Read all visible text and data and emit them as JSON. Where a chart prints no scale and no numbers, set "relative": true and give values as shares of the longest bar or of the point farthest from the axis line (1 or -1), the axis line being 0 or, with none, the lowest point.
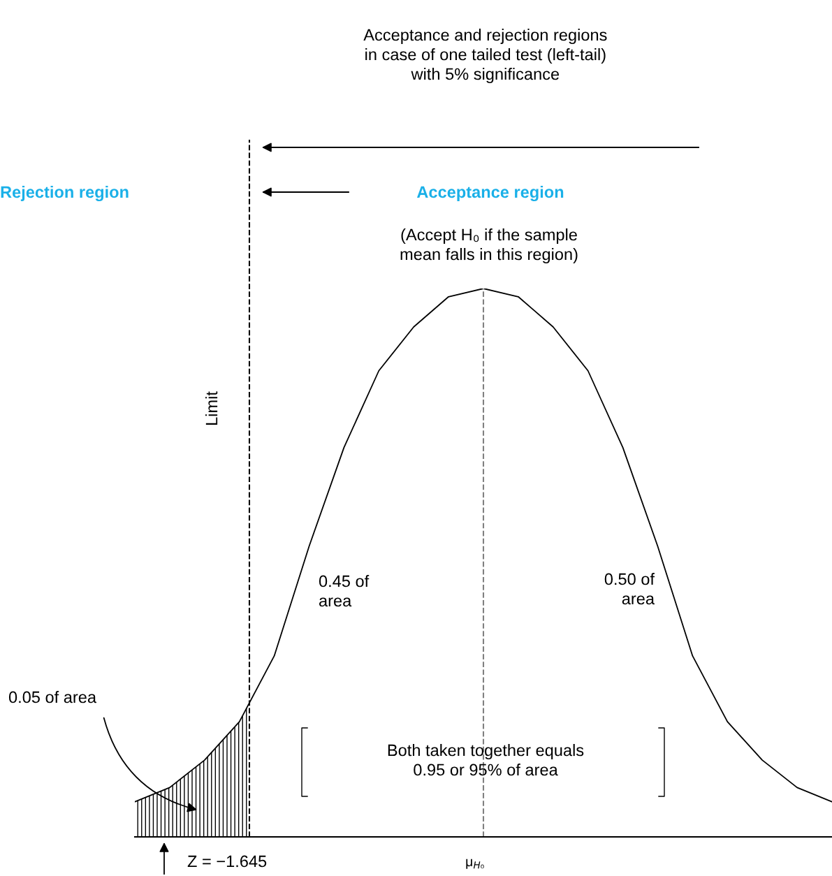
{
  "chart_data": {
    "type": "line",
    "relative": true,
    "title": "Acceptance and rejection regions\nin case of one tailed test (left-tail)\nwith 5% significance",
    "categories": [
      null,
      null,
      null,
      null,
      null,
      null,
      null,
      null,
      null,
      null,
      null,
      null,
      null,
      null,
      null,
      null,
      null,
      null,
      null,
      null,
      null
    ],
    "series": [
      {
        "color": "#000000",
        "values": [
          0.064,
          0.09,
          0.14,
          0.21,
          0.33,
          0.53,
          0.71,
          0.85,
          0.93,
          0.985,
          1.0,
          0.985,
          0.93,
          0.85,
          0.71,
          0.53,
          0.33,
          0.21,
          0.14,
          0.09,
          0.064
        ]
      }
    ],
    "annotations": [
      "Rejection region",
      "Acceptance region",
      "(Accept H₀ if the sample\nmean falls in this region)",
      "0.45 of\narea",
      "0.50 of\narea",
      "0.05 of area",
      "Both taken together equals\n0.95 or 95% of area",
      "Z = −1.645",
      "Limit",
      "μ$_{H₀}$"
    ],
    "line_style": "solid",
    "marker": "none",
    "legend": false
  }
}
